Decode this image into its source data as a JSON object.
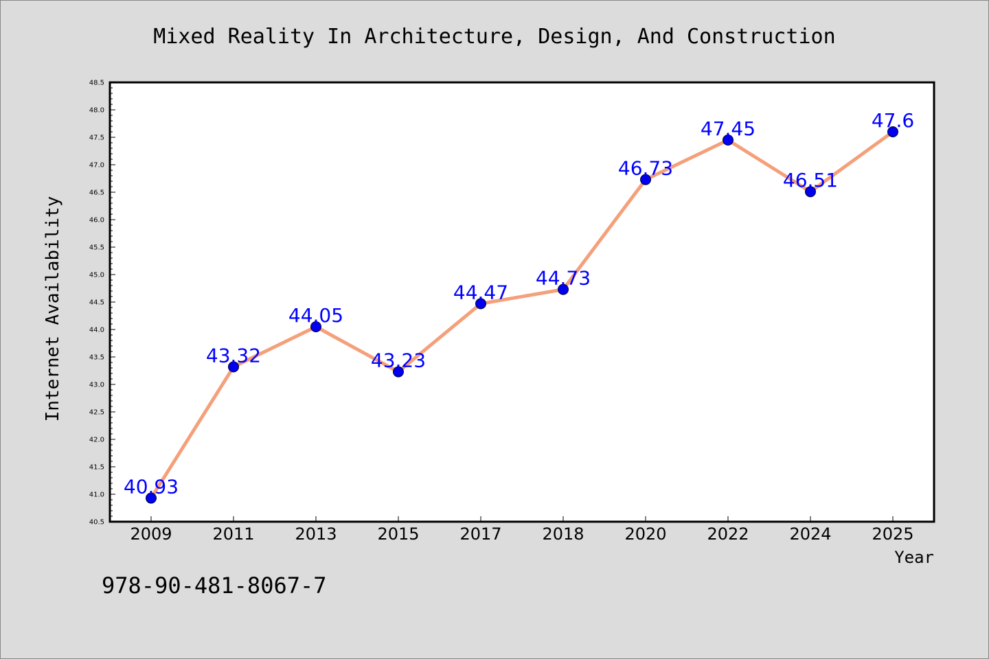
{
  "chart_data": {
    "type": "line",
    "title": "Mixed Reality In Architecture, Design, And Construction",
    "xlabel": "Year",
    "ylabel": "Internet Availability",
    "categories": [
      "2009",
      "2011",
      "2013",
      "2015",
      "2017",
      "2018",
      "2020",
      "2022",
      "2024",
      "2025"
    ],
    "series": [
      {
        "values": [
          40.93,
          43.32,
          44.05,
          43.23,
          44.47,
          44.73,
          46.73,
          47.45,
          46.51,
          47.6
        ],
        "data_labels": [
          "40.93",
          "43.32",
          "44.05",
          "43.23",
          "44.47",
          "44.73",
          "46.73",
          "47.45",
          "46.51",
          "47.6"
        ],
        "line_color": "#f4a07a",
        "marker_color": "#0000ee",
        "label_color": "#0000ff"
      }
    ],
    "ylim": [
      40.5,
      48.5
    ],
    "yticks": [
      "40.5",
      "41.0",
      "41.5",
      "42.0",
      "42.5",
      "43.0",
      "43.5",
      "44.0",
      "44.5",
      "45.0",
      "45.5",
      "46.0",
      "46.5",
      "47.0",
      "47.5",
      "48.0",
      "48.5"
    ],
    "grid": false,
    "legend": "none",
    "background": "#dcdcdc",
    "plot_background": "#ffffff"
  },
  "footer": {
    "isbn": "978-90-481-8067-7"
  }
}
